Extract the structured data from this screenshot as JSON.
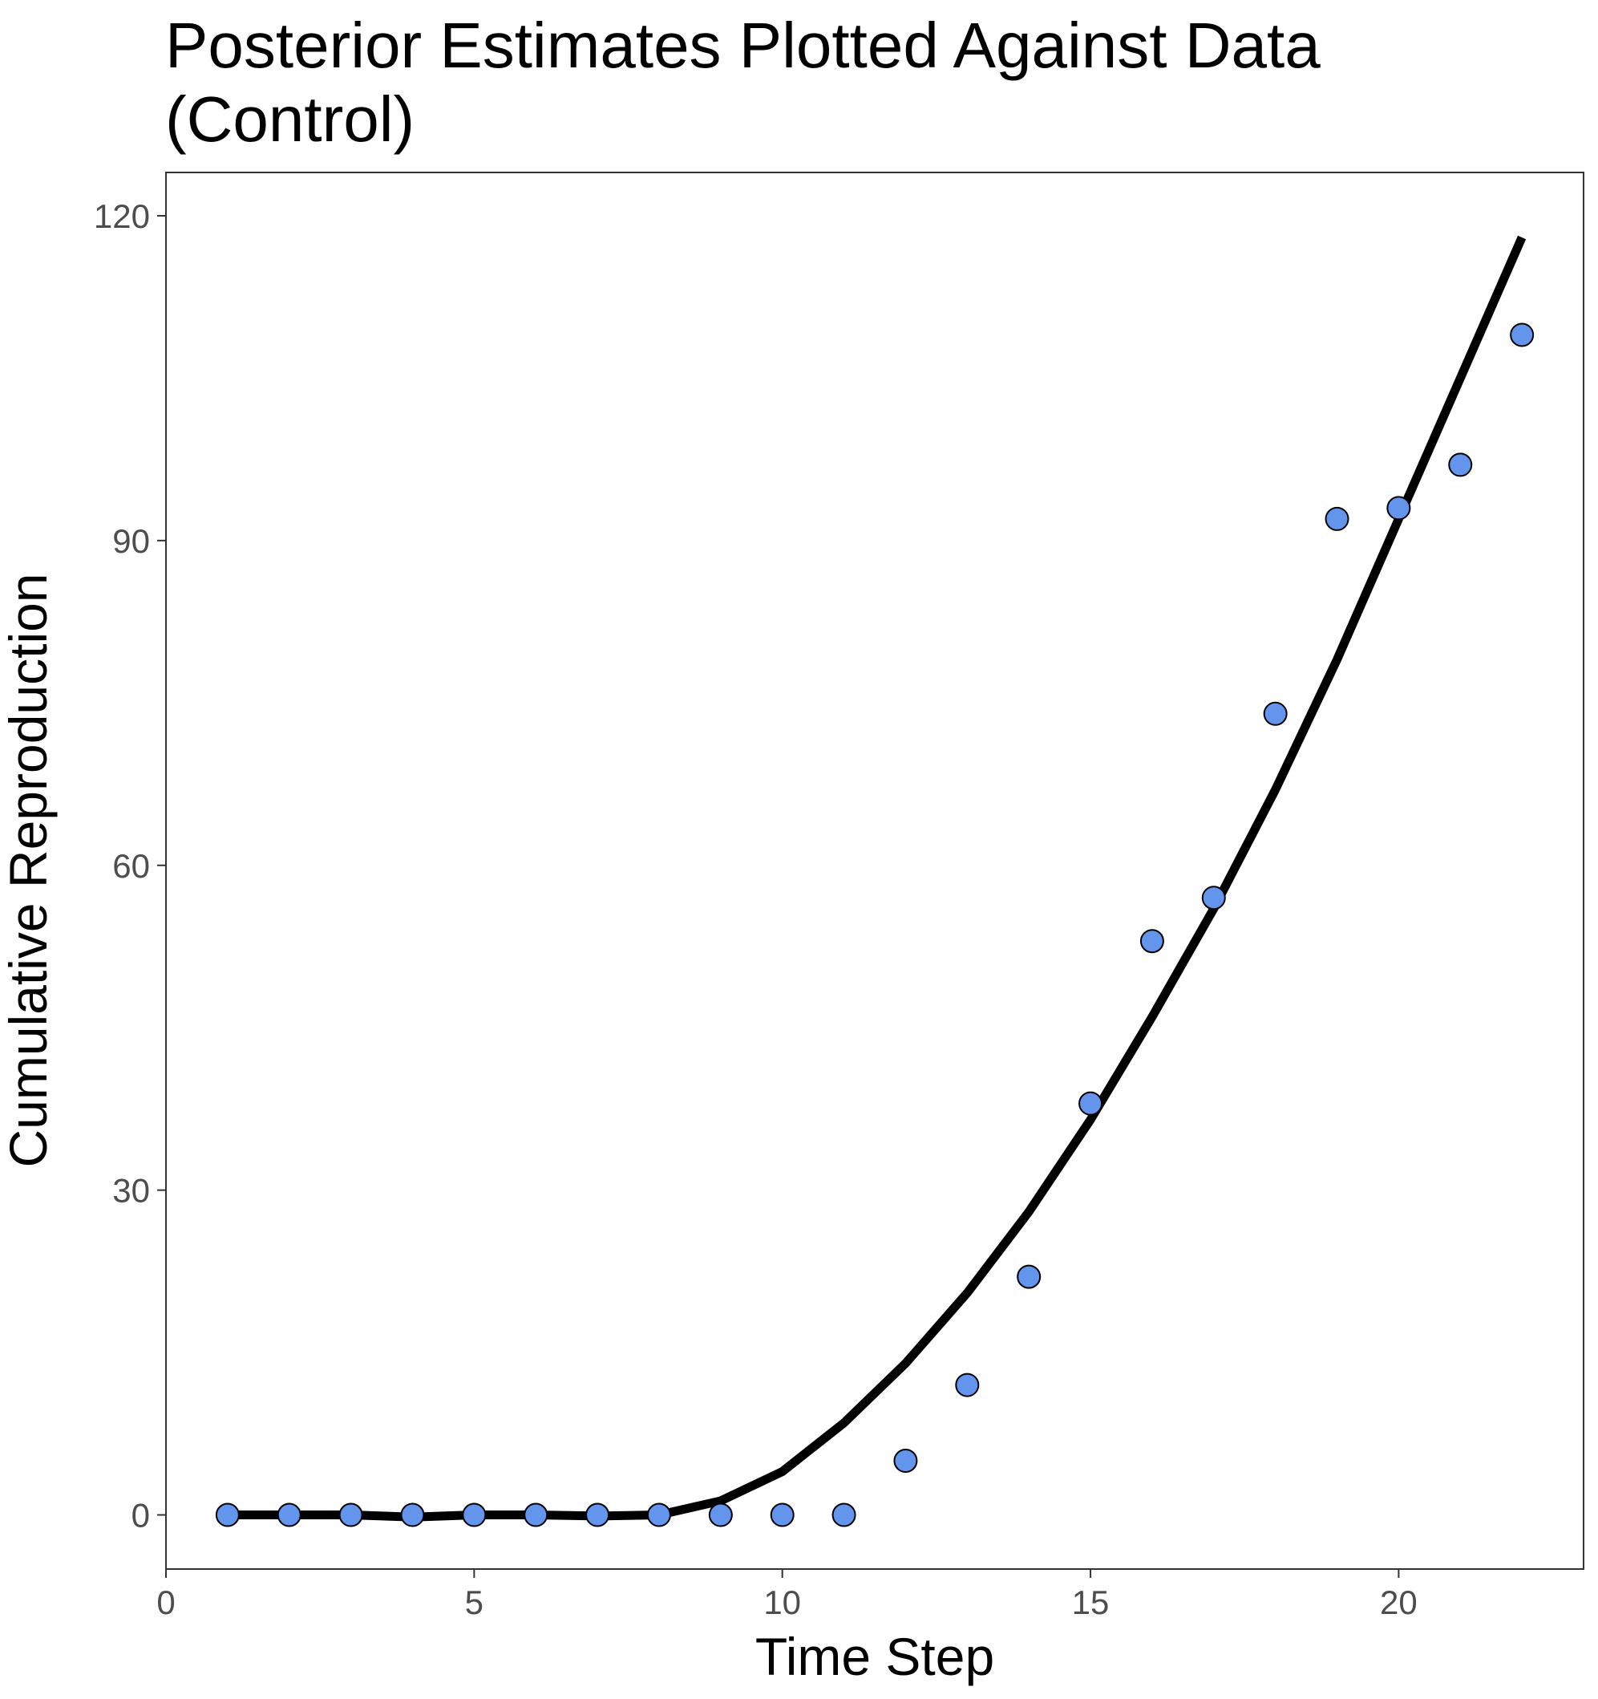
{
  "chart_data": {
    "type": "scatter",
    "title_lines": [
      "Posterior Estimates Plotted Against Data",
      "(Control)"
    ],
    "xlabel": "Time Step",
    "ylabel": "Cumulative Reproduction",
    "xlim": [
      0,
      23
    ],
    "ylim": [
      -5,
      124
    ],
    "x_ticks": [
      0,
      5,
      10,
      15,
      20
    ],
    "y_ticks": [
      0,
      30,
      60,
      90,
      120
    ],
    "grid": false,
    "point_color": "#6495ED",
    "line_color": "#000000",
    "series": [
      {
        "kind": "points",
        "x": [
          1,
          2,
          3,
          4,
          5,
          6,
          7,
          8,
          9,
          10,
          11,
          12,
          13,
          14,
          15,
          16,
          17,
          18,
          19,
          20,
          21,
          22
        ],
        "y": [
          0,
          0,
          0,
          0,
          0,
          0,
          0,
          0,
          0,
          0,
          0,
          5,
          12,
          22,
          38,
          53,
          57,
          74,
          92,
          93,
          97,
          109
        ]
      },
      {
        "kind": "line",
        "x": [
          1,
          2,
          3,
          4,
          5,
          6,
          7,
          8,
          9,
          10,
          11,
          12,
          13,
          14,
          15,
          16,
          17,
          18,
          19,
          20,
          21,
          22
        ],
        "y": [
          0,
          0,
          0,
          -0.2,
          0,
          0,
          -0.1,
          0,
          1.3,
          4,
          8.5,
          14,
          20.5,
          28,
          36.5,
          46,
          56,
          67,
          79,
          92,
          105,
          118
        ]
      }
    ]
  }
}
